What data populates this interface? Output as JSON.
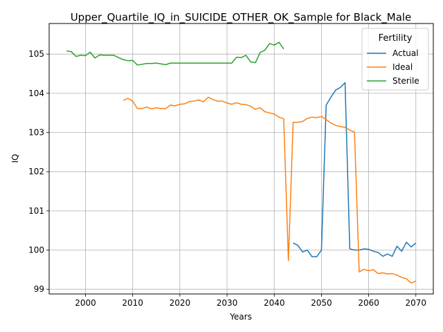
{
  "chart_data": {
    "type": "line",
    "title": "Upper_Quartile_IQ_in_SUICIDE_OTHER_OK_Sample for Black_Male",
    "xlabel": "Years",
    "ylabel": "IQ",
    "xlim": [
      1992.3,
      2073.7
    ],
    "ylim": [
      98.88,
      105.78
    ],
    "x_ticks": [
      2000,
      2010,
      2020,
      2030,
      2040,
      2050,
      2060,
      2070
    ],
    "y_ticks": [
      99,
      100,
      101,
      102,
      103,
      104,
      105
    ],
    "grid": true,
    "legend": {
      "title": "Fertility",
      "position": "top-right"
    },
    "series": [
      {
        "name": "Actual",
        "color": "#1f77b4",
        "x": [
          2044,
          2045,
          2046,
          2047,
          2048,
          2049,
          2050,
          2051,
          2052,
          2053,
          2054,
          2055,
          2056,
          2057,
          2058,
          2059,
          2060,
          2061,
          2062,
          2063,
          2064,
          2065,
          2066,
          2067,
          2068,
          2069,
          2070
        ],
        "y": [
          100.18,
          100.12,
          99.95,
          100.0,
          99.83,
          99.83,
          100.0,
          103.7,
          103.9,
          104.08,
          104.15,
          104.27,
          100.03,
          100.0,
          100.0,
          100.03,
          100.02,
          99.97,
          99.94,
          99.84,
          99.9,
          99.84,
          100.1,
          99.97,
          100.2,
          100.08,
          100.18
        ]
      },
      {
        "name": "Ideal",
        "color": "#ff7f0e",
        "x": [
          2008,
          2009,
          2010,
          2011,
          2012,
          2013,
          2014,
          2015,
          2016,
          2017,
          2018,
          2019,
          2020,
          2021,
          2022,
          2023,
          2024,
          2025,
          2026,
          2027,
          2028,
          2029,
          2030,
          2031,
          2032,
          2033,
          2034,
          2035,
          2036,
          2037,
          2038,
          2039,
          2040,
          2041,
          2042,
          2043,
          2044,
          2045,
          2046,
          2047,
          2048,
          2049,
          2050,
          2051,
          2052,
          2053,
          2054,
          2055,
          2056,
          2057,
          2058,
          2059,
          2060,
          2061,
          2062,
          2063,
          2064,
          2065,
          2066,
          2067,
          2068,
          2069,
          2070
        ],
        "y": [
          103.82,
          103.87,
          103.8,
          103.61,
          103.61,
          103.65,
          103.6,
          103.63,
          103.61,
          103.61,
          103.7,
          103.68,
          103.72,
          103.73,
          103.79,
          103.8,
          103.83,
          103.78,
          103.9,
          103.84,
          103.8,
          103.8,
          103.75,
          103.72,
          103.76,
          103.72,
          103.71,
          103.67,
          103.59,
          103.63,
          103.53,
          103.5,
          103.47,
          103.39,
          103.35,
          99.73,
          103.26,
          103.26,
          103.28,
          103.36,
          103.39,
          103.38,
          103.41,
          103.33,
          103.24,
          103.18,
          103.15,
          103.13,
          103.06,
          103.01,
          99.44,
          99.51,
          99.47,
          99.5,
          99.4,
          99.42,
          99.39,
          99.4,
          99.36,
          99.3,
          99.27,
          99.16,
          99.21
        ]
      },
      {
        "name": "Sterile",
        "color": "#2ca02c",
        "x": [
          1996,
          1997,
          1998,
          1999,
          2000,
          2001,
          2002,
          2003,
          2004,
          2005,
          2006,
          2007,
          2008,
          2009,
          2010,
          2011,
          2012,
          2013,
          2014,
          2015,
          2016,
          2017,
          2018,
          2019,
          2020,
          2021,
          2022,
          2023,
          2024,
          2025,
          2026,
          2027,
          2028,
          2029,
          2030,
          2031,
          2032,
          2033,
          2034,
          2035,
          2036,
          2037,
          2038,
          2039,
          2040,
          2041,
          2042
        ],
        "y": [
          105.08,
          105.06,
          104.94,
          104.97,
          104.96,
          105.05,
          104.9,
          104.98,
          104.97,
          104.97,
          104.97,
          104.91,
          104.86,
          104.83,
          104.84,
          104.72,
          104.74,
          104.76,
          104.76,
          104.77,
          104.75,
          104.73,
          104.77,
          104.77,
          104.77,
          104.77,
          104.77,
          104.77,
          104.77,
          104.77,
          104.77,
          104.77,
          104.77,
          104.77,
          104.77,
          104.77,
          104.92,
          104.91,
          104.97,
          104.8,
          104.78,
          105.04,
          105.1,
          105.27,
          105.23,
          105.3,
          105.13
        ]
      }
    ]
  }
}
